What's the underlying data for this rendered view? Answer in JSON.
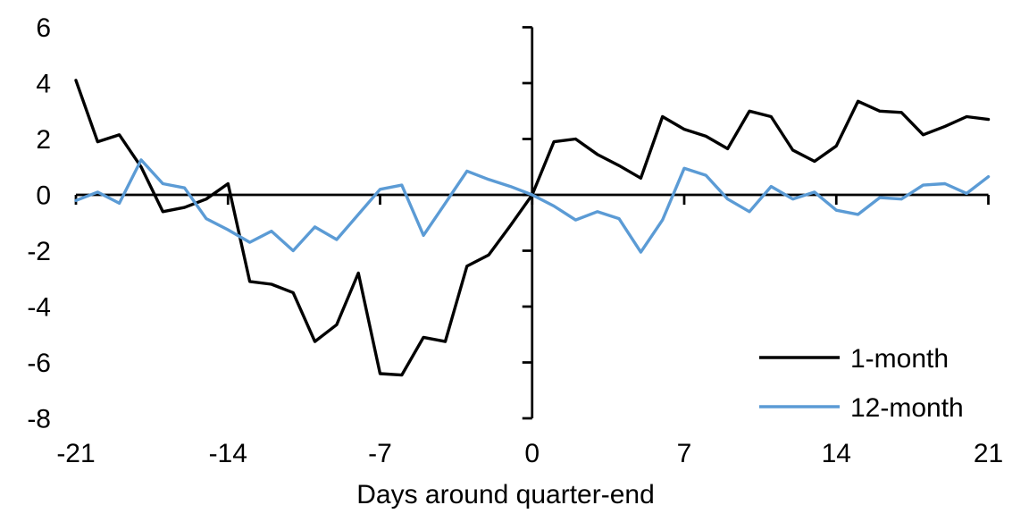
{
  "chart_data": {
    "type": "line",
    "title": "",
    "xlabel": "Days around quarter-end",
    "ylabel": "",
    "xlim": [
      -21,
      21
    ],
    "ylim": [
      -8,
      6
    ],
    "x_ticks": [
      -21,
      -14,
      -7,
      0,
      7,
      14,
      21
    ],
    "y_ticks": [
      6,
      4,
      2,
      0,
      -2,
      -4,
      -6,
      -8
    ],
    "grid": false,
    "legend_position": "bottom-right",
    "axis_color": "#000000",
    "background": "#ffffff",
    "x": [
      -21,
      -20,
      -19,
      -18,
      -17,
      -16,
      -15,
      -14,
      -13,
      -12,
      -11,
      -10,
      -9,
      -8,
      -7,
      -6,
      -5,
      -4,
      -3,
      -2,
      -1,
      0,
      1,
      2,
      3,
      4,
      5,
      6,
      7,
      8,
      9,
      10,
      11,
      12,
      13,
      14,
      15,
      16,
      17,
      18,
      19,
      20,
      21
    ],
    "series": [
      {
        "name": "1-month",
        "color": "#000000",
        "values": [
          4.1,
          1.9,
          2.15,
          1.0,
          -0.6,
          -0.45,
          -0.15,
          0.4,
          -3.1,
          -3.2,
          -3.5,
          -5.25,
          -4.65,
          -2.8,
          -6.4,
          -6.45,
          -5.1,
          -5.25,
          -2.55,
          -2.15,
          -1.1,
          0.0,
          1.9,
          2.0,
          1.45,
          1.05,
          0.6,
          2.8,
          2.35,
          2.1,
          1.65,
          3.0,
          2.8,
          1.6,
          1.2,
          1.75,
          3.35,
          3.0,
          2.95,
          2.15,
          2.45,
          2.8,
          2.7
        ]
      },
      {
        "name": "12-month",
        "color": "#5B9BD5",
        "values": [
          -0.2,
          0.1,
          -0.3,
          1.25,
          0.4,
          0.25,
          -0.85,
          -1.25,
          -1.7,
          -1.3,
          -2.0,
          -1.15,
          -1.6,
          -0.7,
          0.2,
          0.35,
          -1.45,
          -0.3,
          0.85,
          0.55,
          0.3,
          0.0,
          -0.4,
          -0.9,
          -0.6,
          -0.85,
          -2.05,
          -0.9,
          0.95,
          0.7,
          -0.15,
          -0.6,
          0.3,
          -0.15,
          0.1,
          -0.55,
          -0.7,
          -0.1,
          -0.15,
          0.35,
          0.4,
          0.05,
          0.65
        ]
      }
    ]
  }
}
